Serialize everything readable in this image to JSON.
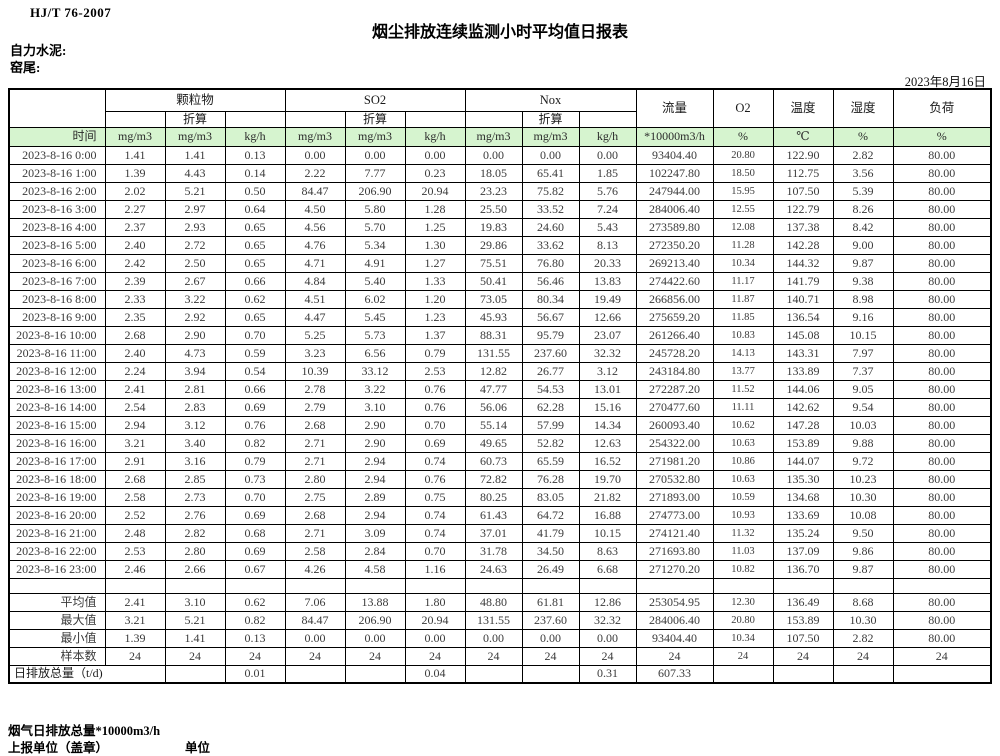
{
  "page": {
    "standard": "HJ/T  76-2007",
    "title": "烟尘排放连续监测小时平均值日报表",
    "company": "自力水泥:",
    "location": "窑尾:",
    "date": "2023年8月16日",
    "footnote": "烟气日排放总量*10000m3/h",
    "report_unit": "上报单位（盖章）",
    "unit_label": "单位"
  },
  "table": {
    "time_header": "时间",
    "conv_label": "折算",
    "groups": [
      {
        "label": "颗粒物"
      },
      {
        "label": "SO2"
      },
      {
        "label": "Nox"
      }
    ],
    "single_headers": [
      "流量",
      "O2",
      "温度",
      "湿度",
      "负荷"
    ],
    "units": [
      "mg/m3",
      "mg/m3",
      "kg/h",
      "mg/m3",
      "mg/m3",
      "kg/h",
      "mg/m3",
      "mg/m3",
      "kg/h",
      "*10000m3/h",
      "%",
      "℃",
      "%",
      "%"
    ],
    "rows": [
      [
        "2023-8-16 0:00",
        "1.41",
        "1.41",
        "0.13",
        "0.00",
        "0.00",
        "0.00",
        "0.00",
        "0.00",
        "0.00",
        "93404.40",
        "20.80",
        "122.90",
        "2.82",
        "80.00"
      ],
      [
        "2023-8-16 1:00",
        "1.39",
        "4.43",
        "0.14",
        "2.22",
        "7.77",
        "0.23",
        "18.05",
        "65.41",
        "1.85",
        "102247.80",
        "18.50",
        "112.75",
        "3.56",
        "80.00"
      ],
      [
        "2023-8-16 2:00",
        "2.02",
        "5.21",
        "0.50",
        "84.47",
        "206.90",
        "20.94",
        "23.23",
        "75.82",
        "5.76",
        "247944.00",
        "15.95",
        "107.50",
        "5.39",
        "80.00"
      ],
      [
        "2023-8-16 3:00",
        "2.27",
        "2.97",
        "0.64",
        "4.50",
        "5.80",
        "1.28",
        "25.50",
        "33.52",
        "7.24",
        "284006.40",
        "12.55",
        "122.79",
        "8.26",
        "80.00"
      ],
      [
        "2023-8-16 4:00",
        "2.37",
        "2.93",
        "0.65",
        "4.56",
        "5.70",
        "1.25",
        "19.83",
        "24.60",
        "5.43",
        "273589.80",
        "12.08",
        "137.38",
        "8.42",
        "80.00"
      ],
      [
        "2023-8-16 5:00",
        "2.40",
        "2.72",
        "0.65",
        "4.76",
        "5.34",
        "1.30",
        "29.86",
        "33.62",
        "8.13",
        "272350.20",
        "11.28",
        "142.28",
        "9.00",
        "80.00"
      ],
      [
        "2023-8-16 6:00",
        "2.42",
        "2.50",
        "0.65",
        "4.71",
        "4.91",
        "1.27",
        "75.51",
        "76.80",
        "20.33",
        "269213.40",
        "10.34",
        "144.32",
        "9.87",
        "80.00"
      ],
      [
        "2023-8-16 7:00",
        "2.39",
        "2.67",
        "0.66",
        "4.84",
        "5.40",
        "1.33",
        "50.41",
        "56.46",
        "13.83",
        "274422.60",
        "11.17",
        "141.79",
        "9.38",
        "80.00"
      ],
      [
        "2023-8-16 8:00",
        "2.33",
        "3.22",
        "0.62",
        "4.51",
        "6.02",
        "1.20",
        "73.05",
        "80.34",
        "19.49",
        "266856.00",
        "11.87",
        "140.71",
        "8.98",
        "80.00"
      ],
      [
        "2023-8-16 9:00",
        "2.35",
        "2.92",
        "0.65",
        "4.47",
        "5.45",
        "1.23",
        "45.93",
        "56.67",
        "12.66",
        "275659.20",
        "11.85",
        "136.54",
        "9.16",
        "80.00"
      ],
      [
        "2023-8-16 10:00",
        "2.68",
        "2.90",
        "0.70",
        "5.25",
        "5.73",
        "1.37",
        "88.31",
        "95.79",
        "23.07",
        "261266.40",
        "10.83",
        "145.08",
        "10.15",
        "80.00"
      ],
      [
        "2023-8-16 11:00",
        "2.40",
        "4.73",
        "0.59",
        "3.23",
        "6.56",
        "0.79",
        "131.55",
        "237.60",
        "32.32",
        "245728.20",
        "14.13",
        "143.31",
        "7.97",
        "80.00"
      ],
      [
        "2023-8-16 12:00",
        "2.24",
        "3.94",
        "0.54",
        "10.39",
        "33.12",
        "2.53",
        "12.82",
        "26.77",
        "3.12",
        "243184.80",
        "13.77",
        "133.89",
        "7.37",
        "80.00"
      ],
      [
        "2023-8-16 13:00",
        "2.41",
        "2.81",
        "0.66",
        "2.78",
        "3.22",
        "0.76",
        "47.77",
        "54.53",
        "13.01",
        "272287.20",
        "11.52",
        "144.06",
        "9.05",
        "80.00"
      ],
      [
        "2023-8-16 14:00",
        "2.54",
        "2.83",
        "0.69",
        "2.79",
        "3.10",
        "0.76",
        "56.06",
        "62.28",
        "15.16",
        "270477.60",
        "11.11",
        "142.62",
        "9.54",
        "80.00"
      ],
      [
        "2023-8-16 15:00",
        "2.94",
        "3.12",
        "0.76",
        "2.68",
        "2.90",
        "0.70",
        "55.14",
        "57.99",
        "14.34",
        "260093.40",
        "10.62",
        "147.28",
        "10.03",
        "80.00"
      ],
      [
        "2023-8-16 16:00",
        "3.21",
        "3.40",
        "0.82",
        "2.71",
        "2.90",
        "0.69",
        "49.65",
        "52.82",
        "12.63",
        "254322.00",
        "10.63",
        "153.89",
        "9.88",
        "80.00"
      ],
      [
        "2023-8-16 17:00",
        "2.91",
        "3.16",
        "0.79",
        "2.71",
        "2.94",
        "0.74",
        "60.73",
        "65.59",
        "16.52",
        "271981.20",
        "10.86",
        "144.07",
        "9.72",
        "80.00"
      ],
      [
        "2023-8-16 18:00",
        "2.68",
        "2.85",
        "0.73",
        "2.80",
        "2.94",
        "0.76",
        "72.82",
        "76.28",
        "19.70",
        "270532.80",
        "10.63",
        "135.30",
        "10.23",
        "80.00"
      ],
      [
        "2023-8-16 19:00",
        "2.58",
        "2.73",
        "0.70",
        "2.75",
        "2.89",
        "0.75",
        "80.25",
        "83.05",
        "21.82",
        "271893.00",
        "10.59",
        "134.68",
        "10.30",
        "80.00"
      ],
      [
        "2023-8-16 20:00",
        "2.52",
        "2.76",
        "0.69",
        "2.68",
        "2.94",
        "0.74",
        "61.43",
        "64.72",
        "16.88",
        "274773.00",
        "10.93",
        "133.69",
        "10.08",
        "80.00"
      ],
      [
        "2023-8-16 21:00",
        "2.48",
        "2.82",
        "0.68",
        "2.71",
        "3.09",
        "0.74",
        "37.01",
        "41.79",
        "10.15",
        "274121.40",
        "11.32",
        "135.24",
        "9.50",
        "80.00"
      ],
      [
        "2023-8-16 22:00",
        "2.53",
        "2.80",
        "0.69",
        "2.58",
        "2.84",
        "0.70",
        "31.78",
        "34.50",
        "8.63",
        "271693.80",
        "11.03",
        "137.09",
        "9.86",
        "80.00"
      ],
      [
        "2023-8-16 23:00",
        "2.46",
        "2.66",
        "0.67",
        "4.26",
        "4.58",
        "1.16",
        "24.63",
        "26.49",
        "6.68",
        "271270.20",
        "10.82",
        "136.70",
        "9.87",
        "80.00"
      ]
    ],
    "summary": [
      {
        "label": "平均值",
        "values": [
          "2.41",
          "3.10",
          "0.62",
          "7.06",
          "13.88",
          "1.80",
          "48.80",
          "61.81",
          "12.86",
          "253054.95",
          "12.30",
          "136.49",
          "8.68",
          "80.00"
        ]
      },
      {
        "label": "最大值",
        "values": [
          "3.21",
          "5.21",
          "0.82",
          "84.47",
          "206.90",
          "20.94",
          "131.55",
          "237.60",
          "32.32",
          "284006.40",
          "20.80",
          "153.89",
          "10.30",
          "80.00"
        ]
      },
      {
        "label": "最小值",
        "values": [
          "1.39",
          "1.41",
          "0.13",
          "0.00",
          "0.00",
          "0.00",
          "0.00",
          "0.00",
          "0.00",
          "93404.40",
          "10.34",
          "107.50",
          "2.82",
          "80.00"
        ]
      },
      {
        "label": "样本数",
        "values": [
          "24",
          "24",
          "24",
          "24",
          "24",
          "24",
          "24",
          "24",
          "24",
          "24",
          "24",
          "24",
          "24",
          "24"
        ]
      }
    ],
    "total": {
      "label": "日排放总量（t/d)",
      "values": [
        "",
        "0.01",
        "",
        "",
        "0.04",
        "",
        "",
        "0.31",
        "607.33",
        "",
        "",
        "",
        ""
      ]
    }
  }
}
